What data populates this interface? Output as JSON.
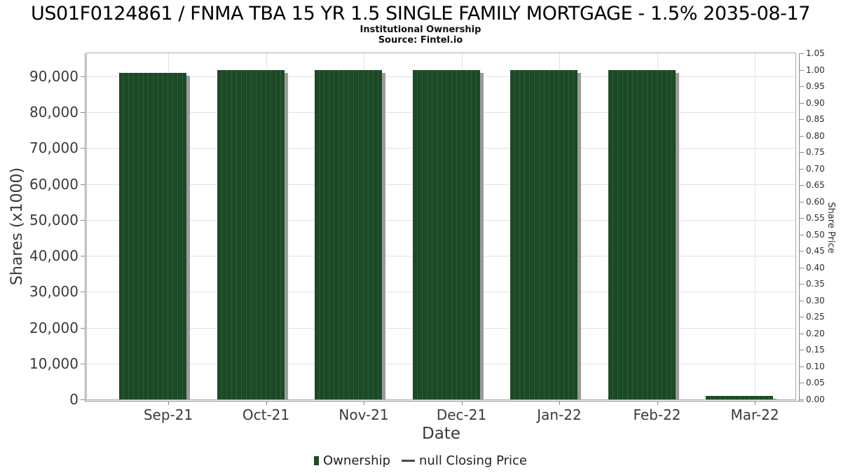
{
  "chart_data": {
    "type": "bar",
    "title": "US01F0124861 / FNMA TBA 15 YR 1.5 SINGLE FAMILY MORTGAGE - 1.5% 2035-08-17",
    "subtitle": "Institutional Ownership",
    "source": "Source: Fintel.io",
    "xlabel": "Date",
    "ylabel_left": "Shares (x1000)",
    "ylabel_right": "Share Price",
    "categories": [
      "Sep-21",
      "Oct-21",
      "Nov-21",
      "Dec-21",
      "Jan-22",
      "Feb-22",
      "Mar-22"
    ],
    "series": [
      {
        "name": "Ownership",
        "type": "bar",
        "axis": "left",
        "color": "#1d4a26",
        "values": [
          90900,
          91750,
          91750,
          91750,
          91750,
          91750,
          900
        ]
      },
      {
        "name": "null Closing Price",
        "type": "line",
        "axis": "right",
        "color": "#4a4a4a",
        "values": [
          null,
          null,
          null,
          null,
          null,
          null,
          null
        ]
      }
    ],
    "ylim_left": [
      0,
      96400
    ],
    "ylim_right": [
      0,
      1.05
    ],
    "yticks_left": {
      "values": [
        0,
        10000,
        20000,
        30000,
        40000,
        50000,
        60000,
        70000,
        80000,
        90000
      ],
      "labels": [
        "0",
        "10,000",
        "20,000",
        "30,000",
        "40,000",
        "50,000",
        "60,000",
        "70,000",
        "80,000",
        "90,000"
      ]
    },
    "yticks_right": {
      "values": [
        0.0,
        0.05,
        0.1,
        0.15,
        0.2,
        0.25,
        0.3,
        0.35,
        0.4,
        0.45,
        0.5,
        0.55,
        0.6,
        0.65,
        0.7,
        0.75,
        0.8,
        0.85,
        0.9,
        0.95,
        1.0,
        1.05
      ],
      "labels": [
        "0.00",
        "0.05",
        "0.10",
        "0.15",
        "0.20",
        "0.25",
        "0.30",
        "0.35",
        "0.40",
        "0.45",
        "0.50",
        "0.55",
        "0.60",
        "0.65",
        "0.70",
        "0.75",
        "0.80",
        "0.85",
        "0.90",
        "0.95",
        "1.00",
        "1.05"
      ]
    },
    "grid": true,
    "legend_position": "bottom"
  },
  "colors": {
    "bar": "#1d4a26",
    "bar_stripe": "#2f5c38",
    "bar_shadow": "#9b9b9b",
    "grid": "#e2e2e2",
    "axis": "#8a8a8a",
    "plot_border": "#a8a8a8",
    "dash_marker": "#4a4a4a"
  }
}
